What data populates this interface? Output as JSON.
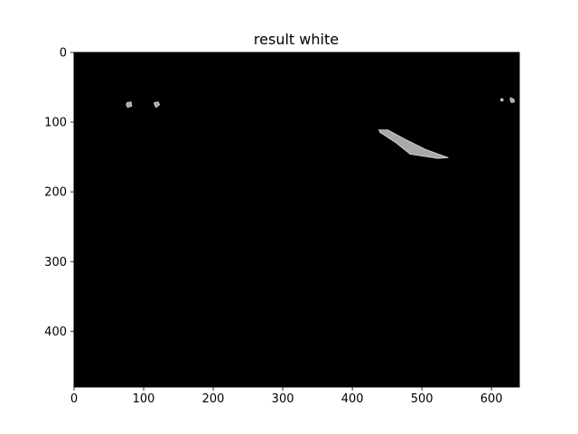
{
  "chart_data": {
    "type": "heatmap",
    "title": "result white",
    "xlabel": "",
    "ylabel": "",
    "xlim": [
      0,
      640
    ],
    "ylim": [
      480,
      0
    ],
    "y_inverted": true,
    "grid": false,
    "xticks": [
      0,
      100,
      200,
      300,
      400,
      500,
      600
    ],
    "yticks": [
      0,
      100,
      200,
      300,
      400
    ],
    "background_color": "#000000",
    "shape_color": "#a9a9a9",
    "shape_edge_color": "#d8d8d8",
    "image_width": 640,
    "image_height": 480,
    "regions": [
      {
        "name": "left-blob-1",
        "points": [
          [
            76,
            72
          ],
          [
            82,
            71
          ],
          [
            83,
            77
          ],
          [
            77,
            79
          ],
          [
            75,
            75
          ]
        ]
      },
      {
        "name": "left-blob-2",
        "points": [
          [
            115,
            72
          ],
          [
            121,
            71
          ],
          [
            123,
            75
          ],
          [
            118,
            79
          ],
          [
            116,
            76
          ]
        ]
      },
      {
        "name": "diagonal-streak",
        "points": [
          [
            438,
            111
          ],
          [
            451,
            111
          ],
          [
            475,
            124
          ],
          [
            505,
            139
          ],
          [
            538,
            151
          ],
          [
            523,
            152
          ],
          [
            483,
            146
          ],
          [
            463,
            130
          ],
          [
            448,
            120
          ],
          [
            440,
            115
          ]
        ]
      },
      {
        "name": "right-fleck-1",
        "points": [
          [
            613,
            67
          ],
          [
            616,
            66
          ],
          [
            617,
            69
          ],
          [
            614,
            70
          ]
        ]
      },
      {
        "name": "right-fleck-2",
        "points": [
          [
            627,
            65
          ],
          [
            632,
            67
          ],
          [
            633,
            71
          ],
          [
            629,
            72
          ],
          [
            627,
            69
          ]
        ]
      }
    ]
  }
}
